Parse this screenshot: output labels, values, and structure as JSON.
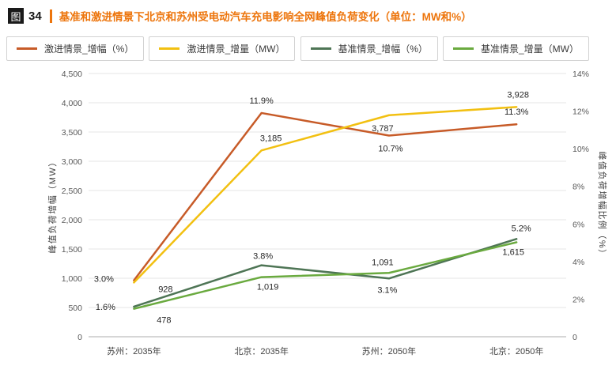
{
  "figure": {
    "badge": "图",
    "number": "34",
    "title": "基准和激进情景下北京和苏州受电动汽车充电影响全网峰值负荷变化（单位：MW和%）",
    "accent_color": "#ed750c"
  },
  "chart_data": {
    "type": "line",
    "title": "基准和激进情景下北京和苏州受电动汽车充电影响全网峰值负荷变化（单位：MW和%）",
    "categories": [
      "苏州：2035年",
      "北京：2035年",
      "苏州：2050年",
      "北京：2050年"
    ],
    "series": [
      {
        "name": "激进情景_增幅（%）",
        "axis": "right",
        "color": "#c75b28",
        "values": [
          3.0,
          11.9,
          10.7,
          11.3
        ],
        "labels": [
          "3.0%",
          "11.9%",
          "10.7%",
          "11.3%"
        ]
      },
      {
        "name": "激进情景_增量（MW）",
        "axis": "left",
        "color": "#f2c011",
        "values": [
          928,
          3185,
          3787,
          3928
        ],
        "labels": [
          "928",
          "3,185",
          "3,787",
          "3,928"
        ]
      },
      {
        "name": "基准情景_增幅（%）",
        "axis": "right",
        "color": "#4e7555",
        "values": [
          1.6,
          3.8,
          3.1,
          5.2
        ],
        "labels": [
          "1.6%",
          "3.8%",
          "3.1%",
          "5.2%"
        ]
      },
      {
        "name": "基准情景_增量（MW）",
        "axis": "left",
        "color": "#6aaa3f",
        "values": [
          478,
          1019,
          1091,
          1615
        ],
        "labels": [
          "478",
          "1,019",
          "1,091",
          "1,615"
        ]
      }
    ],
    "left_axis": {
      "title": "峰值负荷增幅（MW）",
      "min": 0,
      "max": 4500,
      "step": 500,
      "ticks": [
        "0",
        "500",
        "1,000",
        "1,500",
        "2,000",
        "2,500",
        "3,000",
        "3,500",
        "4,000",
        "4,500"
      ]
    },
    "right_axis": {
      "title": "峰值负荷增幅比例（%）",
      "min": 0,
      "max": 14,
      "step": 2,
      "ticks": [
        "0",
        "2%",
        "4%",
        "6%",
        "8%",
        "10%",
        "12%",
        "14%"
      ]
    },
    "grid": true,
    "legend_position": "top"
  }
}
